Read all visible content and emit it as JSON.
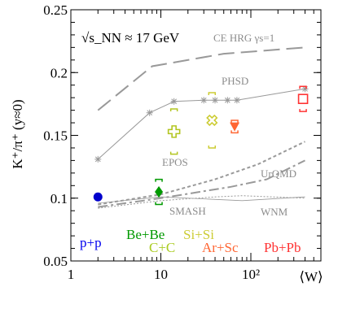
{
  "chart_data": {
    "type": "scatter",
    "title": "",
    "energy_label": "√s_NN ≈ 17 GeV",
    "xlabel": "⟨W⟩",
    "ylabel": "K⁺/π⁺ (y≈0)",
    "x_scale": "log",
    "xlim": [
      1,
      600
    ],
    "ylim": [
      0.05,
      0.25
    ],
    "x_ticks": [
      {
        "value": 1,
        "label": "1"
      },
      {
        "value": 10,
        "label": "10"
      },
      {
        "value": 100,
        "label": "10²"
      }
    ],
    "y_ticks": [
      {
        "value": 0.05,
        "label": "0.05"
      },
      {
        "value": 0.1,
        "label": "0.1"
      },
      {
        "value": 0.15,
        "label": "0.15"
      },
      {
        "value": 0.2,
        "label": "0.2"
      },
      {
        "value": 0.25,
        "label": "0.25"
      }
    ],
    "models": [
      {
        "name": "CE HRG γs=1",
        "color": "#999999",
        "style": "longdash",
        "points": [
          [
            2,
            0.17
          ],
          [
            8,
            0.205
          ],
          [
            50,
            0.215
          ],
          [
            400,
            0.22
          ]
        ]
      },
      {
        "name": "PHSD",
        "color": "#999999",
        "style": "solid-stars",
        "points": [
          [
            2,
            0.131
          ],
          [
            7.5,
            0.168
          ],
          [
            14,
            0.177
          ],
          [
            30,
            0.178
          ],
          [
            40,
            0.178
          ],
          [
            55,
            0.178
          ],
          [
            70,
            0.178
          ],
          [
            400,
            0.187
          ]
        ]
      },
      {
        "name": "EPOS",
        "color": "#999999",
        "style": "dotted",
        "points": [
          [
            2,
            0.095
          ],
          [
            10,
            0.103
          ],
          [
            40,
            0.115
          ],
          [
            120,
            0.127
          ],
          [
            400,
            0.145
          ]
        ]
      },
      {
        "name": "UrQMD",
        "color": "#999999",
        "style": "dashdot",
        "points": [
          [
            2,
            0.093
          ],
          [
            10,
            0.1
          ],
          [
            60,
            0.109
          ],
          [
            150,
            0.115
          ],
          [
            400,
            0.13
          ]
        ]
      },
      {
        "name": "SMASH",
        "color": "#999999",
        "style": "dotted-fine",
        "points": [
          [
            2,
            0.092
          ],
          [
            10,
            0.098
          ],
          [
            40,
            0.101
          ],
          [
            80,
            0.102
          ],
          [
            400,
            0.1
          ]
        ]
      },
      {
        "name": "WNM",
        "color": "#999999",
        "style": "solid-thin",
        "points": [
          [
            2,
            0.096
          ],
          [
            10,
            0.101
          ],
          [
            80,
            0.098
          ],
          [
            400,
            0.101
          ]
        ]
      }
    ],
    "measurements": [
      {
        "system": "p+p",
        "color": "#0000cc",
        "marker": "circle",
        "x": 2,
        "y": 0.101,
        "err": 0.003,
        "sys": 0.0
      },
      {
        "system": "Be+Be",
        "color": "#009900",
        "marker": "diamond",
        "x": 9.5,
        "y": 0.105,
        "err": 0.004,
        "sys": 0.01
      },
      {
        "system": "C+C",
        "color": "#b2c520",
        "marker": "open-cross",
        "x": 14,
        "y": 0.153,
        "err": 0.0,
        "sys": 0.018
      },
      {
        "system": "Si+Si",
        "color": "#cccc33",
        "marker": "open-x",
        "x": 37,
        "y": 0.162,
        "err": 0.0,
        "sys": 0.022
      },
      {
        "system": "Ar+Sc",
        "color": "#ff6633",
        "marker": "triangle-down",
        "x": 66,
        "y": 0.157,
        "err": 0.003,
        "sys": 0.005
      },
      {
        "system": "Pb+Pb",
        "color": "#ff3333",
        "marker": "open-square",
        "x": 380,
        "y": 0.179,
        "err": 0.0,
        "sys": 0.01
      }
    ],
    "system_labels": [
      {
        "text": "p+p",
        "color": "#0000ee"
      },
      {
        "text": "Be+Be",
        "color": "#009900"
      },
      {
        "text": "C+C",
        "color": "#aacc22"
      },
      {
        "text": "Si+Si",
        "color": "#cccc33"
      },
      {
        "text": "Ar+Sc",
        "color": "#ff6633"
      },
      {
        "text": "Pb+Pb",
        "color": "#ff3333"
      }
    ]
  }
}
